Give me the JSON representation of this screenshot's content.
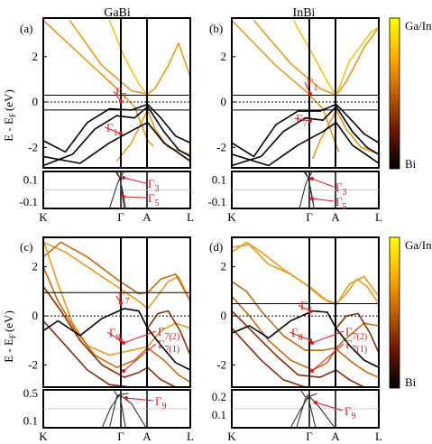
{
  "figure": {
    "column_titles": [
      "GaBi",
      "InBi"
    ],
    "ylabel_top": "E - E",
    "ylabel_sub": "F",
    "ylabel_unit": "(eV)",
    "colorbar": {
      "top_label": "Ga/In",
      "bottom_label": "Bi",
      "colors": [
        "#ffff00",
        "#ffb000",
        "#c06000",
        "#6a1500",
        "#000000"
      ]
    }
  },
  "chart_data": [
    {
      "panel_label": "(a)",
      "type": "line",
      "xticks": [
        "K",
        "Γ",
        "A",
        "L"
      ],
      "main_yticks": [
        "2",
        "0",
        "-2"
      ],
      "main_ylim": [
        -2.9,
        3.7
      ],
      "inset_yticks": [
        "0.1",
        "-0.1"
      ],
      "inset_ylim": [
        -0.16,
        0.18
      ],
      "hlines": [
        0.3,
        -0.35
      ],
      "annotations": [
        "Γ",
        "Γ",
        "Γ",
        "Γ"
      ],
      "annotation_subs": [
        "7",
        "1",
        "3",
        "5"
      ]
    },
    {
      "panel_label": "(b)",
      "type": "line",
      "xticks": [
        "K",
        "Γ",
        "A",
        "L"
      ],
      "main_yticks": [
        "2",
        "0",
        "-2"
      ],
      "main_ylim": [
        -2.9,
        3.7
      ],
      "inset_yticks": [
        "0.1",
        "-0.1"
      ],
      "inset_ylim": [
        -0.16,
        0.18
      ],
      "hlines": [
        0.3,
        -0.35
      ],
      "annotations": [
        "Γ",
        "Γ",
        "Γ",
        "Γ"
      ],
      "annotation_subs": [
        "1",
        "7",
        "3",
        "5"
      ]
    },
    {
      "panel_label": "(c)",
      "type": "line",
      "xticks": [
        "K",
        "Γ",
        "A",
        "L"
      ],
      "main_yticks": [
        "2",
        "0",
        "-2"
      ],
      "main_ylim": [
        -2.9,
        3.2
      ],
      "inset_yticks": [
        "0.5",
        "0.1"
      ],
      "inset_ylim": [
        0.0,
        0.55
      ],
      "hlines": [
        0.95
      ],
      "annotations": [
        "Γ",
        "Γ",
        "Γ",
        "Γ",
        "Γ"
      ],
      "annotation_subs": [
        "7",
        "8",
        "7(2)",
        "7(1)",
        "9"
      ]
    },
    {
      "panel_label": "(d)",
      "type": "line",
      "xticks": [
        "K",
        "Γ",
        "A",
        "L"
      ],
      "main_yticks": [
        "2",
        "0",
        "-2"
      ],
      "main_ylim": [
        -2.9,
        3.2
      ],
      "inset_yticks": [
        "0.2",
        "0.1"
      ],
      "inset_ylim": [
        0.03,
        0.24
      ],
      "hlines": [
        0.5
      ],
      "annotations": [
        "Γ",
        "Γ",
        "Γ",
        "Γ",
        "Γ"
      ],
      "annotation_subs": [
        "7",
        "8",
        "7(2)",
        "7(1)",
        "9"
      ]
    }
  ]
}
